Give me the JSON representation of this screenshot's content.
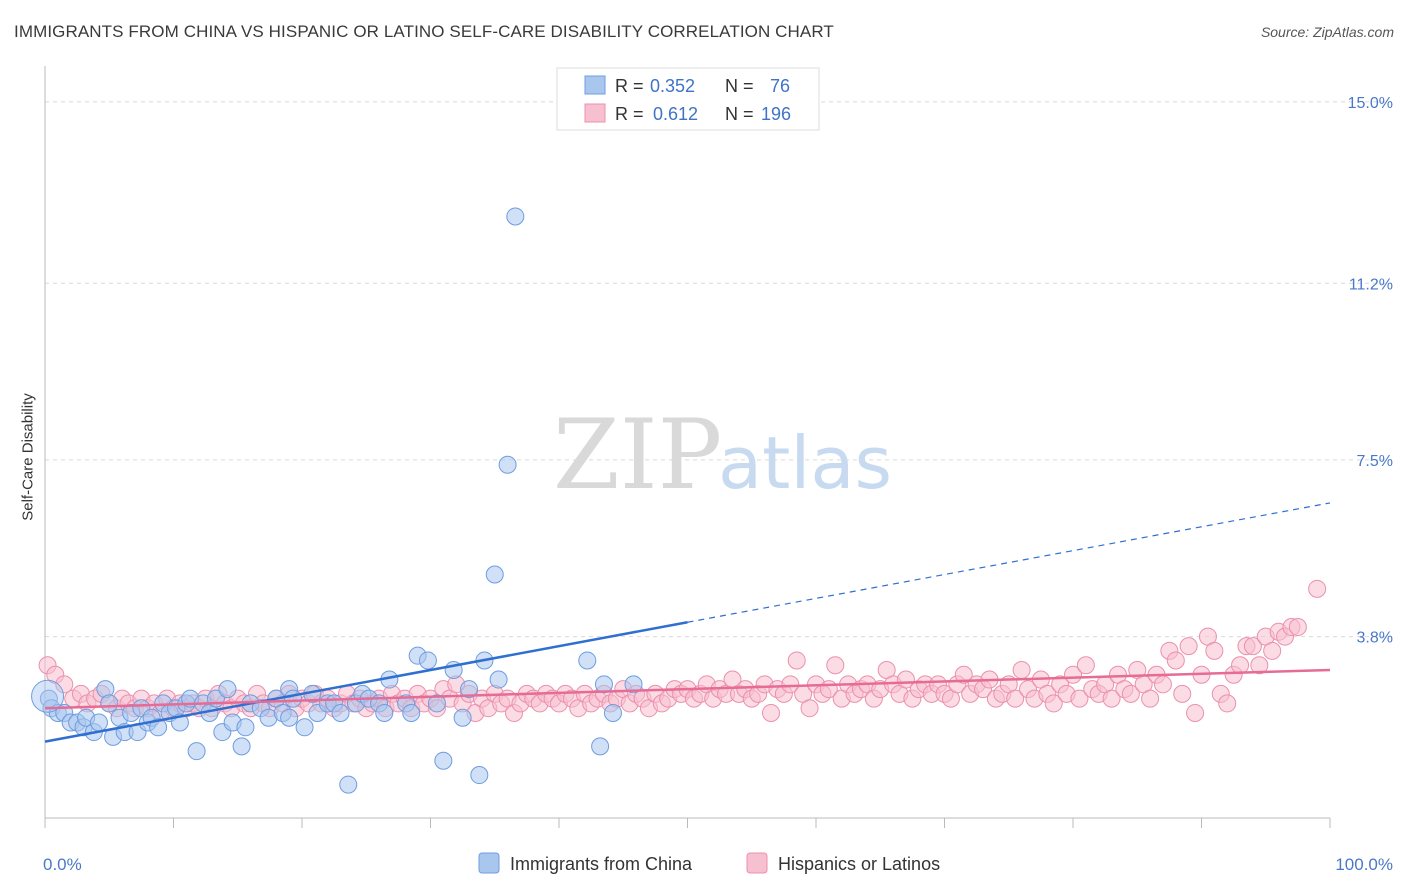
{
  "title": "IMMIGRANTS FROM CHINA VS HISPANIC OR LATINO SELF-CARE DISABILITY CORRELATION CHART",
  "source": "Source: ZipAtlas.com",
  "watermark": {
    "part1": "ZIP",
    "part2": "atlas"
  },
  "legend": {
    "r_label": "R =",
    "n_label": "N =",
    "rows": [
      {
        "r": "0.352",
        "n": "76",
        "color": "#a9c6ef",
        "stroke": "#6e9de0"
      },
      {
        "r": "0.612",
        "n": "196",
        "color": "#f7c0d0",
        "stroke": "#ec8fae"
      }
    ]
  },
  "chart_data": {
    "type": "scatter",
    "title": "IMMIGRANTS FROM CHINA VS HISPANIC OR LATINO SELF-CARE DISABILITY CORRELATION CHART",
    "xlabel": "",
    "ylabel": "Self-Care Disability",
    "xlim": [
      0,
      100
    ],
    "ylim": [
      0,
      15.5
    ],
    "x_tick_labels": [
      "0.0%",
      "100.0%"
    ],
    "y_ticks": [
      3.8,
      7.5,
      11.2,
      15.0
    ],
    "y_tick_labels": [
      "3.8%",
      "7.5%",
      "11.2%",
      "15.0%"
    ],
    "grid": true,
    "legend_position": "top-center",
    "series": [
      {
        "name": "Immigrants from China",
        "color": "#a9c6ef",
        "stroke": "#6e9de0",
        "trend": {
          "x0": 0,
          "y0": 1.6,
          "x1": 50,
          "y1": 4.1,
          "x_dash_end": 100,
          "y_dash_end": 6.6,
          "color": "#2f6fd0"
        },
        "points": [
          [
            0.3,
            2.5
          ],
          [
            0.5,
            2.3
          ],
          [
            1.0,
            2.2
          ],
          [
            1.5,
            2.2
          ],
          [
            2.0,
            2.0
          ],
          [
            2.5,
            2.0
          ],
          [
            3.0,
            1.9
          ],
          [
            3.2,
            2.1
          ],
          [
            3.8,
            1.8
          ],
          [
            4.2,
            2.0
          ],
          [
            4.7,
            2.7
          ],
          [
            5.0,
            2.4
          ],
          [
            5.3,
            1.7
          ],
          [
            5.8,
            2.1
          ],
          [
            6.2,
            1.8
          ],
          [
            6.7,
            2.2
          ],
          [
            7.2,
            1.8
          ],
          [
            7.5,
            2.3
          ],
          [
            8.0,
            2.0
          ],
          [
            8.3,
            2.1
          ],
          [
            8.8,
            1.9
          ],
          [
            9.2,
            2.4
          ],
          [
            9.7,
            2.2
          ],
          [
            10.2,
            2.3
          ],
          [
            10.5,
            2.0
          ],
          [
            11.0,
            2.4
          ],
          [
            11.3,
            2.5
          ],
          [
            11.8,
            1.4
          ],
          [
            12.3,
            2.4
          ],
          [
            12.8,
            2.2
          ],
          [
            13.3,
            2.5
          ],
          [
            13.8,
            1.8
          ],
          [
            14.2,
            2.7
          ],
          [
            14.6,
            2.0
          ],
          [
            15.3,
            1.5
          ],
          [
            15.6,
            1.9
          ],
          [
            16.0,
            2.4
          ],
          [
            16.8,
            2.3
          ],
          [
            17.4,
            2.1
          ],
          [
            18.0,
            2.5
          ],
          [
            18.5,
            2.2
          ],
          [
            19.0,
            2.7
          ],
          [
            19.3,
            2.5
          ],
          [
            19.0,
            2.1
          ],
          [
            20.2,
            1.9
          ],
          [
            20.8,
            2.6
          ],
          [
            21.2,
            2.2
          ],
          [
            22.0,
            2.4
          ],
          [
            22.5,
            2.4
          ],
          [
            23.0,
            2.2
          ],
          [
            23.6,
            0.7
          ],
          [
            24.2,
            2.4
          ],
          [
            24.7,
            2.6
          ],
          [
            25.2,
            2.5
          ],
          [
            26.0,
            2.4
          ],
          [
            26.4,
            2.2
          ],
          [
            26.8,
            2.9
          ],
          [
            28.1,
            2.4
          ],
          [
            28.5,
            2.2
          ],
          [
            29.0,
            3.4
          ],
          [
            29.8,
            3.3
          ],
          [
            30.5,
            2.4
          ],
          [
            31.0,
            1.2
          ],
          [
            31.8,
            3.1
          ],
          [
            32.5,
            2.1
          ],
          [
            33.0,
            2.7
          ],
          [
            33.8,
            0.9
          ],
          [
            34.2,
            3.3
          ],
          [
            35.0,
            5.1
          ],
          [
            35.3,
            2.9
          ],
          [
            36.0,
            7.4
          ],
          [
            36.6,
            12.6
          ],
          [
            42.2,
            3.3
          ],
          [
            43.2,
            1.5
          ],
          [
            43.5,
            2.8
          ],
          [
            44.2,
            2.2
          ],
          [
            45.8,
            2.8
          ]
        ]
      },
      {
        "name": "Hispanics or Latinos",
        "color": "#f7c0d0",
        "stroke": "#ec8fae",
        "trend": {
          "x0": 0,
          "y0": 2.3,
          "x1": 100,
          "y1": 3.1,
          "color": "#e66b95"
        },
        "points": [
          [
            0.2,
            3.2
          ],
          [
            0.8,
            3.0
          ],
          [
            1.5,
            2.8
          ],
          [
            2.2,
            2.5
          ],
          [
            2.8,
            2.6
          ],
          [
            3.3,
            2.4
          ],
          [
            3.9,
            2.5
          ],
          [
            4.4,
            2.6
          ],
          [
            5.0,
            2.4
          ],
          [
            5.6,
            2.3
          ],
          [
            6.0,
            2.5
          ],
          [
            6.5,
            2.4
          ],
          [
            7.0,
            2.3
          ],
          [
            7.5,
            2.5
          ],
          [
            8.0,
            2.3
          ],
          [
            8.5,
            2.4
          ],
          [
            9.0,
            2.2
          ],
          [
            9.5,
            2.5
          ],
          [
            10.0,
            2.3
          ],
          [
            10.5,
            2.4
          ],
          [
            11.0,
            2.3
          ],
          [
            11.5,
            2.4
          ],
          [
            12.0,
            2.3
          ],
          [
            12.5,
            2.5
          ],
          [
            13.0,
            2.3
          ],
          [
            13.5,
            2.6
          ],
          [
            14.0,
            2.4
          ],
          [
            14.5,
            2.3
          ],
          [
            15.0,
            2.5
          ],
          [
            15.5,
            2.4
          ],
          [
            16.0,
            2.3
          ],
          [
            16.5,
            2.6
          ],
          [
            17.0,
            2.4
          ],
          [
            17.5,
            2.3
          ],
          [
            18.0,
            2.5
          ],
          [
            18.5,
            2.4
          ],
          [
            19.0,
            2.6
          ],
          [
            19.5,
            2.3
          ],
          [
            20.0,
            2.5
          ],
          [
            20.5,
            2.4
          ],
          [
            21.0,
            2.6
          ],
          [
            21.5,
            2.4
          ],
          [
            22.0,
            2.5
          ],
          [
            22.5,
            2.3
          ],
          [
            23.0,
            2.4
          ],
          [
            23.5,
            2.6
          ],
          [
            24.0,
            2.4
          ],
          [
            24.5,
            2.5
          ],
          [
            25.0,
            2.3
          ],
          [
            25.5,
            2.4
          ],
          [
            26.0,
            2.5
          ],
          [
            26.5,
            2.3
          ],
          [
            27.0,
            2.6
          ],
          [
            27.5,
            2.4
          ],
          [
            28.0,
            2.5
          ],
          [
            28.5,
            2.3
          ],
          [
            29.0,
            2.6
          ],
          [
            29.5,
            2.4
          ],
          [
            30.0,
            2.5
          ],
          [
            30.5,
            2.3
          ],
          [
            31.0,
            2.7
          ],
          [
            31.5,
            2.5
          ],
          [
            32.0,
            2.8
          ],
          [
            32.5,
            2.4
          ],
          [
            33.0,
            2.6
          ],
          [
            33.5,
            2.2
          ],
          [
            34.0,
            2.5
          ],
          [
            34.5,
            2.3
          ],
          [
            35.0,
            2.6
          ],
          [
            35.5,
            2.4
          ],
          [
            36.0,
            2.5
          ],
          [
            36.5,
            2.2
          ],
          [
            37.0,
            2.4
          ],
          [
            37.5,
            2.6
          ],
          [
            38.0,
            2.5
          ],
          [
            38.5,
            2.4
          ],
          [
            39.0,
            2.6
          ],
          [
            39.5,
            2.5
          ],
          [
            40.0,
            2.4
          ],
          [
            40.5,
            2.6
          ],
          [
            41.0,
            2.5
          ],
          [
            41.5,
            2.3
          ],
          [
            42.0,
            2.6
          ],
          [
            42.5,
            2.4
          ],
          [
            43.0,
            2.5
          ],
          [
            43.5,
            2.6
          ],
          [
            44.0,
            2.4
          ],
          [
            44.5,
            2.5
          ],
          [
            45.0,
            2.7
          ],
          [
            45.5,
            2.4
          ],
          [
            46.0,
            2.6
          ],
          [
            46.5,
            2.5
          ],
          [
            47.0,
            2.3
          ],
          [
            47.5,
            2.6
          ],
          [
            48.0,
            2.4
          ],
          [
            48.5,
            2.5
          ],
          [
            49.0,
            2.7
          ],
          [
            49.5,
            2.6
          ],
          [
            50.0,
            2.7
          ],
          [
            50.5,
            2.5
          ],
          [
            51.0,
            2.6
          ],
          [
            51.5,
            2.8
          ],
          [
            52.0,
            2.5
          ],
          [
            52.5,
            2.7
          ],
          [
            53.0,
            2.6
          ],
          [
            53.5,
            2.9
          ],
          [
            54.0,
            2.6
          ],
          [
            54.5,
            2.7
          ],
          [
            55.0,
            2.5
          ],
          [
            55.5,
            2.6
          ],
          [
            56.0,
            2.8
          ],
          [
            56.5,
            2.2
          ],
          [
            57.0,
            2.7
          ],
          [
            57.5,
            2.6
          ],
          [
            58.0,
            2.8
          ],
          [
            58.5,
            3.3
          ],
          [
            59.0,
            2.6
          ],
          [
            59.5,
            2.3
          ],
          [
            60.0,
            2.8
          ],
          [
            60.5,
            2.6
          ],
          [
            61.0,
            2.7
          ],
          [
            61.5,
            3.2
          ],
          [
            62.0,
            2.5
          ],
          [
            62.5,
            2.8
          ],
          [
            63.0,
            2.6
          ],
          [
            63.5,
            2.7
          ],
          [
            64.0,
            2.8
          ],
          [
            64.5,
            2.5
          ],
          [
            65.0,
            2.7
          ],
          [
            65.5,
            3.1
          ],
          [
            66.0,
            2.8
          ],
          [
            66.5,
            2.6
          ],
          [
            67.0,
            2.9
          ],
          [
            67.5,
            2.5
          ],
          [
            68.0,
            2.7
          ],
          [
            68.5,
            2.8
          ],
          [
            69.0,
            2.6
          ],
          [
            69.5,
            2.8
          ],
          [
            70.0,
            2.6
          ],
          [
            70.5,
            2.5
          ],
          [
            71.0,
            2.8
          ],
          [
            71.5,
            3.0
          ],
          [
            72.0,
            2.6
          ],
          [
            72.5,
            2.8
          ],
          [
            73.0,
            2.7
          ],
          [
            73.5,
            2.9
          ],
          [
            74.0,
            2.5
          ],
          [
            74.5,
            2.6
          ],
          [
            75.0,
            2.8
          ],
          [
            75.5,
            2.5
          ],
          [
            76.0,
            3.1
          ],
          [
            76.5,
            2.7
          ],
          [
            77.0,
            2.5
          ],
          [
            77.5,
            2.9
          ],
          [
            78.0,
            2.6
          ],
          [
            78.5,
            2.4
          ],
          [
            79.0,
            2.8
          ],
          [
            79.5,
            2.6
          ],
          [
            80.0,
            3.0
          ],
          [
            80.5,
            2.5
          ],
          [
            81.0,
            3.2
          ],
          [
            81.5,
            2.7
          ],
          [
            82.0,
            2.6
          ],
          [
            82.5,
            2.8
          ],
          [
            83.0,
            2.5
          ],
          [
            83.5,
            3.0
          ],
          [
            84.0,
            2.7
          ],
          [
            84.5,
            2.6
          ],
          [
            85.0,
            3.1
          ],
          [
            85.5,
            2.8
          ],
          [
            86.0,
            2.5
          ],
          [
            86.5,
            3.0
          ],
          [
            87.0,
            2.8
          ],
          [
            87.5,
            3.5
          ],
          [
            88.0,
            3.3
          ],
          [
            88.5,
            2.6
          ],
          [
            89.0,
            3.6
          ],
          [
            89.5,
            2.2
          ],
          [
            90.0,
            3.0
          ],
          [
            90.5,
            3.8
          ],
          [
            91.0,
            3.5
          ],
          [
            91.5,
            2.6
          ],
          [
            92.0,
            2.4
          ],
          [
            92.5,
            3.0
          ],
          [
            93.0,
            3.2
          ],
          [
            93.5,
            3.6
          ],
          [
            94.0,
            3.6
          ],
          [
            94.5,
            3.2
          ],
          [
            95.0,
            3.8
          ],
          [
            95.5,
            3.5
          ],
          [
            96.0,
            3.9
          ],
          [
            96.5,
            3.8
          ],
          [
            97.0,
            4.0
          ],
          [
            97.5,
            4.0
          ],
          [
            99.0,
            4.8
          ]
        ]
      }
    ]
  },
  "bottom_legend": [
    {
      "label": "Immigrants from China",
      "color": "#a9c6ef",
      "stroke": "#6e9de0"
    },
    {
      "label": "Hispanics or Latinos",
      "color": "#f7c0d0",
      "stroke": "#ec8fae"
    }
  ]
}
